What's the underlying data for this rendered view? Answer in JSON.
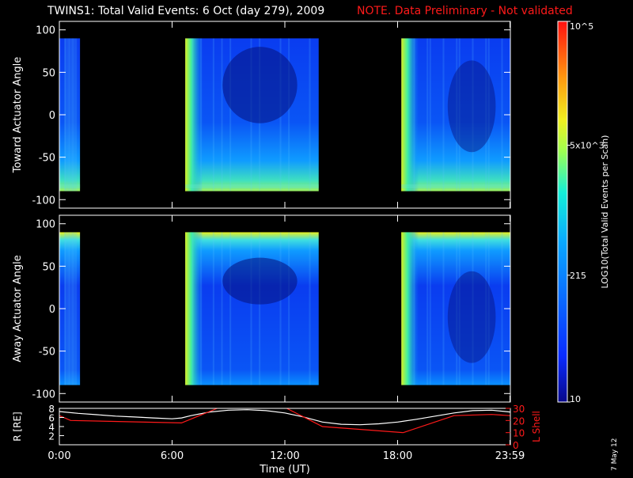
{
  "title": "TWINS1: Total Valid Events:  6 Oct (day 279), 2009",
  "note": "NOTE. Data Preliminary - Not validated",
  "date_stamp": "7 May 12",
  "colors": {
    "background": "#000000",
    "note_red": "#ff1a1a",
    "axis": "#ffffff",
    "r_line": "#ffffff",
    "l_line": "#ff1a1a"
  },
  "chart_data": [
    {
      "type": "heatmap",
      "name": "toward",
      "ylabel": "Toward Actuator Angle",
      "ylim": [
        -110,
        110
      ],
      "y_ticks": [
        "100",
        "50",
        "0",
        "-50",
        "-100"
      ],
      "y_tick_values": [
        100,
        50,
        0,
        -50,
        -100
      ],
      "x_range_hours": [
        0,
        24
      ],
      "data_blocks_hours": [
        [
          0,
          1.1
        ],
        [
          6.7,
          13.8
        ],
        [
          18.2,
          24.0
        ]
      ],
      "angle_range": [
        -90,
        90
      ],
      "colormap": "rainbow",
      "color_scale": "log",
      "colorbar_label": "LOG10(Total Valid Events per Scan)",
      "colorbar_ticks": [
        "10",
        "215",
        "5x10^3",
        "10^5"
      ],
      "colorbar_tick_values": [
        10,
        215,
        5000,
        100000
      ]
    },
    {
      "type": "heatmap",
      "name": "away",
      "ylabel": "Away Actuator Angle",
      "ylim": [
        -110,
        110
      ],
      "y_ticks": [
        "100",
        "50",
        "0",
        "-50",
        "-100"
      ],
      "y_tick_values": [
        100,
        50,
        0,
        -50,
        -100
      ],
      "x_range_hours": [
        0,
        24
      ],
      "data_blocks_hours": [
        [
          0,
          1.1
        ],
        [
          6.7,
          13.8
        ],
        [
          18.2,
          24.0
        ]
      ],
      "angle_range": [
        -90,
        90
      ],
      "colormap": "rainbow",
      "color_scale": "log"
    },
    {
      "type": "line",
      "name": "orbit",
      "ylabel": "R [RE]",
      "ylabel2": "L Shell",
      "xlabel": "Time (UT)",
      "x_ticks": [
        "0:00",
        "6:00",
        "12:00",
        "18:00",
        "23:59"
      ],
      "x_tick_values": [
        0,
        6,
        12,
        18,
        23.98
      ],
      "ylim": [
        0,
        8
      ],
      "y_ticks": [
        "8",
        "6",
        "4",
        "2"
      ],
      "y_tick_values": [
        8,
        6,
        4,
        2
      ],
      "ylim2": [
        0,
        30
      ],
      "y2_ticks": [
        "30",
        "20",
        "10",
        "0"
      ],
      "y2_tick_values": [
        30,
        20,
        10,
        0
      ],
      "series": [
        {
          "name": "R",
          "axis": "left",
          "color": "#ffffff",
          "x": [
            0,
            1,
            2,
            3,
            4,
            5,
            6,
            6.5,
            7,
            8,
            9,
            10,
            11,
            12,
            13,
            14,
            15,
            16,
            17,
            18,
            19,
            20,
            21,
            22,
            23,
            23.98
          ],
          "y": [
            7.3,
            6.9,
            6.6,
            6.3,
            6.1,
            5.9,
            5.7,
            5.9,
            6.4,
            7.2,
            7.6,
            7.7,
            7.5,
            7.0,
            6.1,
            5.0,
            4.5,
            4.4,
            4.6,
            5.0,
            5.6,
            6.3,
            7.0,
            7.5,
            7.6,
            7.2
          ]
        },
        {
          "name": "L Shell",
          "axis": "right",
          "color": "#ff1a1a",
          "x": [
            0,
            0.6,
            6.5,
            8.4,
            8.55,
            12.0,
            12.1,
            14.0,
            18.3,
            21.0,
            23.0,
            23.98
          ],
          "y": [
            24,
            20,
            18,
            30,
            null,
            null,
            30,
            15,
            10,
            24,
            25,
            24
          ]
        }
      ]
    }
  ]
}
